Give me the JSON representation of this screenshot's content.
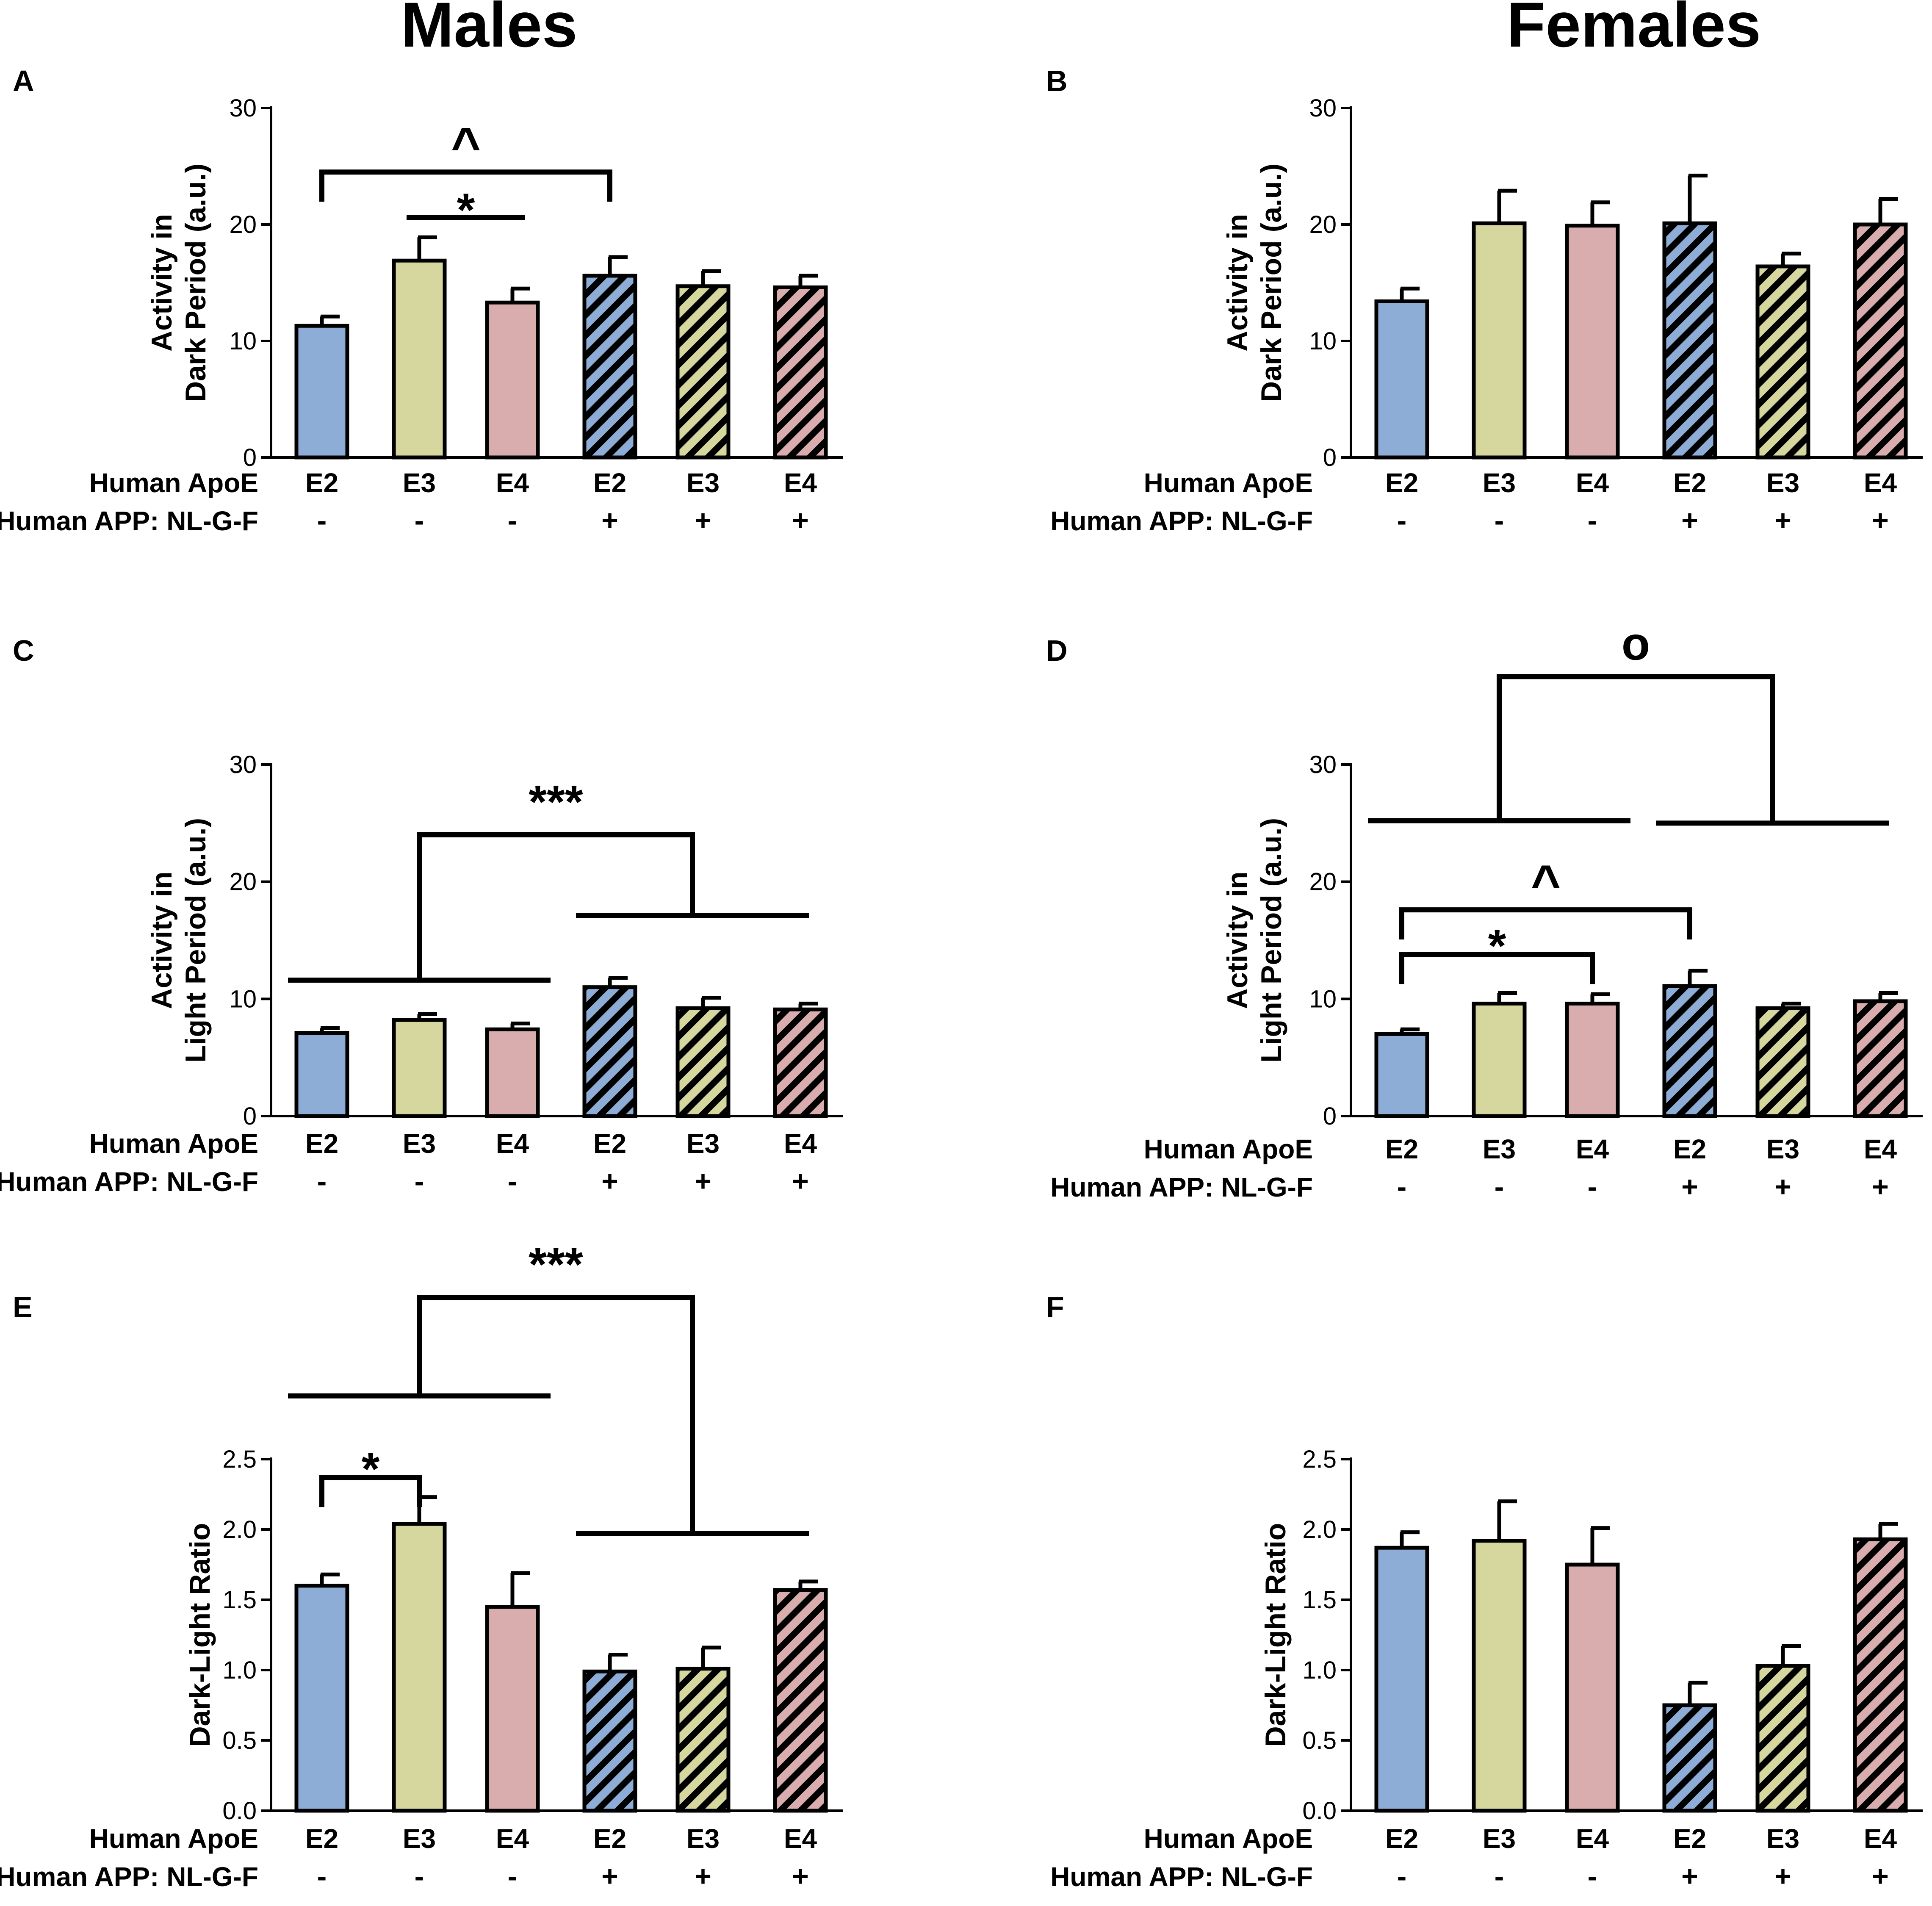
{
  "figure": {
    "column_titles": [
      "Males",
      "Females"
    ],
    "row_labels": {
      "apoe": "Human ApoE",
      "app": "Human APP: NL-G-F"
    },
    "groups": {
      "apoe": [
        "E2",
        "E3",
        "E4",
        "E2",
        "E3",
        "E4"
      ],
      "app": [
        "-",
        "-",
        "-",
        "+",
        "+",
        "+"
      ]
    },
    "colors": {
      "E2": "#8eadd6",
      "E3": "#d6d69f",
      "E4": "#d9adad",
      "outline": "#000000"
    }
  },
  "chart_data": [
    {
      "panel": "A",
      "sex": "Males",
      "type": "bar",
      "ylabel_lines": [
        "Activity in",
        "Dark Period (a.u.)"
      ],
      "ylim": [
        0,
        30
      ],
      "yticks": [
        0,
        10,
        20,
        30
      ],
      "categories": [
        "E2",
        "E3",
        "E4",
        "E2",
        "E3",
        "E4"
      ],
      "app": [
        "-",
        "-",
        "-",
        "+",
        "+",
        "+"
      ],
      "values": [
        11.3,
        16.9,
        13.3,
        15.6,
        14.7,
        14.6
      ],
      "errors": [
        0.8,
        2.0,
        1.2,
        1.6,
        1.3,
        1.0
      ],
      "annotations": [
        {
          "symbol": "^",
          "kind": "bracket",
          "from": 0,
          "to": 3,
          "y": 24.5
        },
        {
          "symbol": "*",
          "kind": "line",
          "from": 1,
          "to": 2,
          "y": 20.6
        }
      ]
    },
    {
      "panel": "B",
      "sex": "Females",
      "type": "bar",
      "ylabel_lines": [
        "Activity in",
        "Dark Period (a.u.)"
      ],
      "ylim": [
        0,
        30
      ],
      "yticks": [
        0,
        10,
        20,
        30
      ],
      "categories": [
        "E2",
        "E3",
        "E4",
        "E2",
        "E3",
        "E4"
      ],
      "app": [
        "-",
        "-",
        "-",
        "+",
        "+",
        "+"
      ],
      "values": [
        13.4,
        20.1,
        19.9,
        20.1,
        16.4,
        20.0
      ],
      "errors": [
        1.1,
        2.8,
        2.0,
        4.1,
        1.1,
        2.2
      ],
      "annotations": []
    },
    {
      "panel": "C",
      "sex": "Males",
      "type": "bar",
      "ylabel_lines": [
        "Activity in",
        "Light Period (a.u.)"
      ],
      "ylim": [
        0,
        30
      ],
      "yticks": [
        0,
        10,
        20,
        30
      ],
      "categories": [
        "E2",
        "E3",
        "E4",
        "E2",
        "E3",
        "E4"
      ],
      "app": [
        "-",
        "-",
        "-",
        "+",
        "+",
        "+"
      ],
      "values": [
        7.1,
        8.2,
        7.4,
        11.0,
        9.2,
        9.1
      ],
      "errors": [
        0.4,
        0.5,
        0.5,
        0.8,
        0.9,
        0.5
      ],
      "annotations": [
        {
          "symbol": "***",
          "kind": "group",
          "left": [
            0,
            2
          ],
          "right": [
            3,
            5
          ],
          "left_y": 11.6,
          "right_y": 17.1,
          "top_y": 24.0
        }
      ]
    },
    {
      "panel": "D",
      "sex": "Females",
      "type": "bar",
      "ylabel_lines": [
        "Activity in",
        "Light Period (a.u.)"
      ],
      "ylim": [
        0,
        30
      ],
      "yticks": [
        0,
        10,
        20,
        30
      ],
      "categories": [
        "E2",
        "E3",
        "E4",
        "E2",
        "E3",
        "E4"
      ],
      "app": [
        "-",
        "-",
        "-",
        "+",
        "+",
        "+"
      ],
      "values": [
        7.0,
        9.6,
        9.6,
        11.1,
        9.2,
        9.8
      ],
      "errors": [
        0.4,
        0.9,
        0.8,
        1.3,
        0.4,
        0.7
      ],
      "annotations": [
        {
          "symbol": "o",
          "kind": "group",
          "left": [
            0,
            2
          ],
          "right": [
            3,
            5
          ],
          "left_y": 25.2,
          "right_y": 25.0,
          "top_y": 37.5
        },
        {
          "symbol": "^",
          "kind": "bracket",
          "from": 0,
          "to": 3,
          "y": 17.6
        },
        {
          "symbol": "*",
          "kind": "bracket",
          "from": 0,
          "to": 2,
          "y": 13.8
        }
      ]
    },
    {
      "panel": "E",
      "sex": "Males",
      "type": "bar",
      "ylabel_lines": [
        "Dark-Light Ratio"
      ],
      "ylim": [
        0,
        2.5
      ],
      "yticks": [
        0.0,
        0.5,
        1.0,
        1.5,
        2.0,
        2.5
      ],
      "categories": [
        "E2",
        "E3",
        "E4",
        "E2",
        "E3",
        "E4"
      ],
      "app": [
        "-",
        "-",
        "-",
        "+",
        "+",
        "+"
      ],
      "values": [
        1.6,
        2.04,
        1.45,
        0.99,
        1.01,
        1.57
      ],
      "errors": [
        0.08,
        0.19,
        0.24,
        0.12,
        0.15,
        0.06
      ],
      "annotations": [
        {
          "symbol": "*",
          "kind": "bracket",
          "from": 0,
          "to": 1,
          "y": 2.37
        },
        {
          "symbol": "***",
          "kind": "group",
          "left": [
            0,
            2
          ],
          "right": [
            3,
            5
          ],
          "left_y": 2.95,
          "right_y": 1.97,
          "top_y": 3.65
        }
      ]
    },
    {
      "panel": "F",
      "sex": "Females",
      "type": "bar",
      "ylabel_lines": [
        "Dark-Light Ratio"
      ],
      "ylim": [
        0,
        2.5
      ],
      "yticks": [
        0.0,
        0.5,
        1.0,
        1.5,
        2.0,
        2.5
      ],
      "categories": [
        "E2",
        "E3",
        "E4",
        "E2",
        "E3",
        "E4"
      ],
      "app": [
        "-",
        "-",
        "-",
        "+",
        "+",
        "+"
      ],
      "values": [
        1.87,
        1.92,
        1.75,
        0.75,
        1.03,
        1.93
      ],
      "errors": [
        0.11,
        0.28,
        0.26,
        0.16,
        0.14,
        0.11
      ],
      "annotations": []
    }
  ]
}
